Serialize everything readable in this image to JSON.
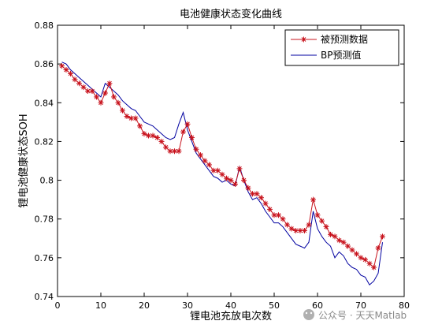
{
  "watermark": "公众号 · 天天Matlab",
  "chart_data": {
    "type": "line",
    "title": "电池健康状态变化曲线",
    "xlabel": "锂电池充放电次数",
    "ylabel": "锂电池健康状态SOH",
    "xlim": [
      0,
      80
    ],
    "ylim": [
      0.74,
      0.88
    ],
    "xticks": [
      0,
      10,
      20,
      30,
      40,
      50,
      60,
      70,
      80
    ],
    "yticks": [
      0.74,
      0.76,
      0.78,
      0.8,
      0.82,
      0.84,
      0.86,
      0.88
    ],
    "xtick_labels": [
      "0",
      "10",
      "20",
      "30",
      "40",
      "50",
      "60",
      "70",
      "80"
    ],
    "ytick_labels": [
      "0.74",
      "0.76",
      "0.78",
      "0.8",
      "0.82",
      "0.84",
      "0.86",
      "0.88"
    ],
    "grid": false,
    "legend_position": "top-right",
    "x": [
      1,
      2,
      3,
      4,
      5,
      6,
      7,
      8,
      9,
      10,
      11,
      12,
      13,
      14,
      15,
      16,
      17,
      18,
      19,
      20,
      21,
      22,
      23,
      24,
      25,
      26,
      27,
      28,
      29,
      30,
      31,
      32,
      33,
      34,
      35,
      36,
      37,
      38,
      39,
      40,
      41,
      42,
      43,
      44,
      45,
      46,
      47,
      48,
      49,
      50,
      51,
      52,
      53,
      54,
      55,
      56,
      57,
      58,
      59,
      60,
      61,
      62,
      63,
      64,
      65,
      66,
      67,
      68,
      69,
      70,
      71,
      72,
      73,
      74,
      75
    ],
    "series": [
      {
        "name": "被预测数据",
        "color": "#c8141e",
        "marker": "asterisk",
        "values": [
          0.859,
          0.857,
          0.855,
          0.852,
          0.85,
          0.848,
          0.846,
          0.846,
          0.843,
          0.84,
          0.845,
          0.85,
          0.843,
          0.84,
          0.836,
          0.833,
          0.832,
          0.832,
          0.828,
          0.824,
          0.823,
          0.823,
          0.822,
          0.82,
          0.817,
          0.815,
          0.815,
          0.815,
          0.825,
          0.829,
          0.822,
          0.816,
          0.813,
          0.81,
          0.808,
          0.805,
          0.805,
          0.803,
          0.801,
          0.8,
          0.798,
          0.806,
          0.8,
          0.796,
          0.793,
          0.793,
          0.791,
          0.788,
          0.785,
          0.782,
          0.782,
          0.78,
          0.777,
          0.775,
          0.774,
          0.774,
          0.774,
          0.777,
          0.79,
          0.782,
          0.779,
          0.776,
          0.772,
          0.771,
          0.769,
          0.768,
          0.766,
          0.764,
          0.762,
          0.76,
          0.759,
          0.757,
          0.755,
          0.765,
          0.771
        ]
      },
      {
        "name": "BP预测值",
        "color": "#0000a0",
        "marker": "none",
        "values": [
          0.861,
          0.86,
          0.857,
          0.855,
          0.853,
          0.851,
          0.849,
          0.847,
          0.845,
          0.843,
          0.85,
          0.848,
          0.846,
          0.844,
          0.841,
          0.839,
          0.837,
          0.836,
          0.833,
          0.83,
          0.829,
          0.828,
          0.826,
          0.824,
          0.822,
          0.821,
          0.822,
          0.829,
          0.835,
          0.826,
          0.82,
          0.814,
          0.811,
          0.808,
          0.805,
          0.802,
          0.801,
          0.799,
          0.8,
          0.798,
          0.797,
          0.807,
          0.8,
          0.794,
          0.79,
          0.791,
          0.788,
          0.784,
          0.781,
          0.778,
          0.778,
          0.776,
          0.773,
          0.77,
          0.767,
          0.766,
          0.765,
          0.768,
          0.784,
          0.775,
          0.771,
          0.768,
          0.766,
          0.76,
          0.763,
          0.761,
          0.757,
          0.755,
          0.754,
          0.751,
          0.75,
          0.746,
          0.748,
          0.752,
          0.768
        ]
      }
    ]
  }
}
